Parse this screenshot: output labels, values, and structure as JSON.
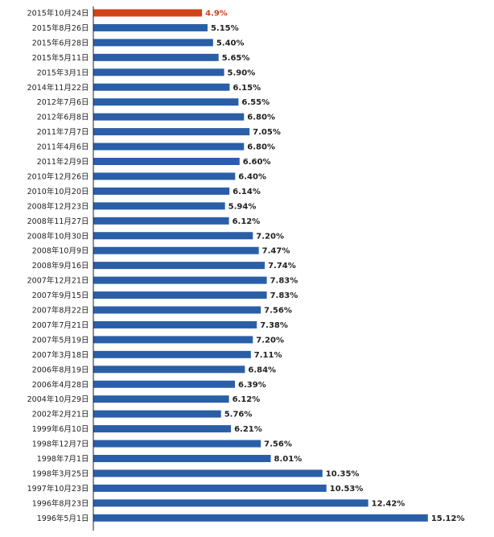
{
  "chart_data": {
    "type": "bar",
    "orientation": "horizontal",
    "title": "",
    "xlabel": "",
    "ylabel": "",
    "colors": {
      "default": "#2a5fa8",
      "highlight": "#d24317",
      "highlight_text": "#d24317",
      "text": "#222222",
      "axis": "#222222"
    },
    "highlight_index": 0,
    "xlim": [
      0,
      15.6
    ],
    "categories": [
      "2015年10月24日",
      "2015年8月26日",
      "2015年6月28日",
      "2015年5月11日",
      "2015年3月1日",
      "2014年11月22日",
      "2012年7月6日",
      "2012年6月8日",
      "2011年7月7日",
      "2011年4月6日",
      "2011年2月9日",
      "2010年12月26日",
      "2010年10月20日",
      "2008年12月23日",
      "2008年11月27日",
      "2008年10月30日",
      "2008年10月9日",
      "2008年9月16日",
      "2007年12月21日",
      "2007年9月15日",
      "2007年8月22日",
      "2007年7月21日",
      "2007年5月19日",
      "2007年3月18日",
      "2006年8月19日",
      "2006年4月28日",
      "2004年10月29日",
      "2002年2月21日",
      "1999年6月10日",
      "1998年12月7日",
      "1998年7月1日",
      "1998年3月25日",
      "1997年10月23日",
      "1996年8月23日",
      "1996年5月1日"
    ],
    "values": [
      4.9,
      5.15,
      5.4,
      5.65,
      5.9,
      6.15,
      6.55,
      6.8,
      7.05,
      6.8,
      6.6,
      6.4,
      6.14,
      5.94,
      6.12,
      7.2,
      7.47,
      7.74,
      7.83,
      7.83,
      7.56,
      7.38,
      7.2,
      7.11,
      6.84,
      6.39,
      6.12,
      5.76,
      6.21,
      7.56,
      8.01,
      10.35,
      10.53,
      12.42,
      15.12
    ],
    "value_labels": [
      "4.9%",
      "5.15%",
      "5.40%",
      "5.65%",
      "5.90%",
      "6.15%",
      "6.55%",
      "6.80%",
      "7.05%",
      "6.80%",
      "6.60%",
      "6.40%",
      "6.14%",
      "5.94%",
      "6.12%",
      "7.20%",
      "7.47%",
      "7.74%",
      "7.83%",
      "7.83%",
      "7.56%",
      "7.38%",
      "7.20%",
      "7.11%",
      "6.84%",
      "6.39%",
      "6.12%",
      "5.76%",
      "6.21%",
      "7.56%",
      "8.01%",
      "10.35%",
      "10.53%",
      "12.42%",
      "15.12%"
    ]
  }
}
